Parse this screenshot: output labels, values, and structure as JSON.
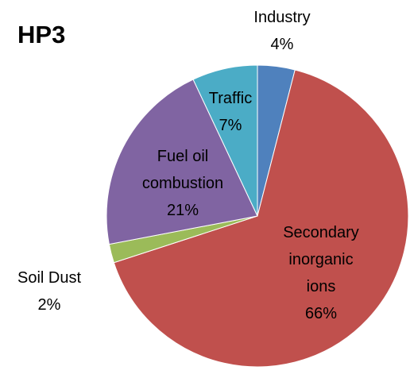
{
  "chart_data": {
    "type": "pie",
    "title": "HP3",
    "categories": [
      "Industry",
      "Secondary inorganic ions",
      "Soil Dust",
      "Fuel oil combustion",
      "Traffic"
    ],
    "values": [
      4,
      66,
      2,
      21,
      7
    ],
    "value_labels": [
      "4%",
      "66%",
      "2%",
      "21%",
      "7%"
    ],
    "colors": [
      "#4f81bd",
      "#c0504d",
      "#9bbb59",
      "#8064a2",
      "#4bacc6"
    ]
  }
}
